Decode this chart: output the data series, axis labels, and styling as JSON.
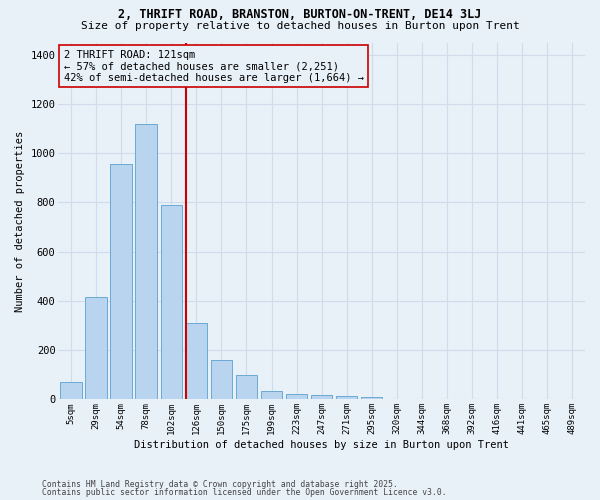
{
  "title1": "2, THRIFT ROAD, BRANSTON, BURTON-ON-TRENT, DE14 3LJ",
  "title2": "Size of property relative to detached houses in Burton upon Trent",
  "xlabel": "Distribution of detached houses by size in Burton upon Trent",
  "ylabel": "Number of detached properties",
  "footnote1": "Contains HM Land Registry data © Crown copyright and database right 2025.",
  "footnote2": "Contains public sector information licensed under the Open Government Licence v3.0.",
  "categories": [
    "5sqm",
    "29sqm",
    "54sqm",
    "78sqm",
    "102sqm",
    "126sqm",
    "150sqm",
    "175sqm",
    "199sqm",
    "223sqm",
    "247sqm",
    "271sqm",
    "295sqm",
    "320sqm",
    "344sqm",
    "368sqm",
    "392sqm",
    "416sqm",
    "441sqm",
    "465sqm",
    "489sqm"
  ],
  "values": [
    70,
    415,
    955,
    1120,
    790,
    310,
    160,
    100,
    35,
    20,
    17,
    12,
    8,
    3,
    2,
    1,
    1,
    1,
    0,
    0,
    0
  ],
  "bar_color": "#b8d4ee",
  "bar_edge_color": "#6aaad4",
  "bg_color": "#e8f0f8",
  "grid_color": "#d0dcea",
  "vline_color": "#cc0000",
  "vline_idx": 5,
  "annotation_text_line1": "2 THRIFT ROAD: 121sqm",
  "annotation_text_line2": "← 57% of detached houses are smaller (2,251)",
  "annotation_text_line3": "42% of semi-detached houses are larger (1,664) →",
  "ylim": [
    0,
    1450
  ],
  "yticks": [
    0,
    200,
    400,
    600,
    800,
    1000,
    1200,
    1400
  ]
}
